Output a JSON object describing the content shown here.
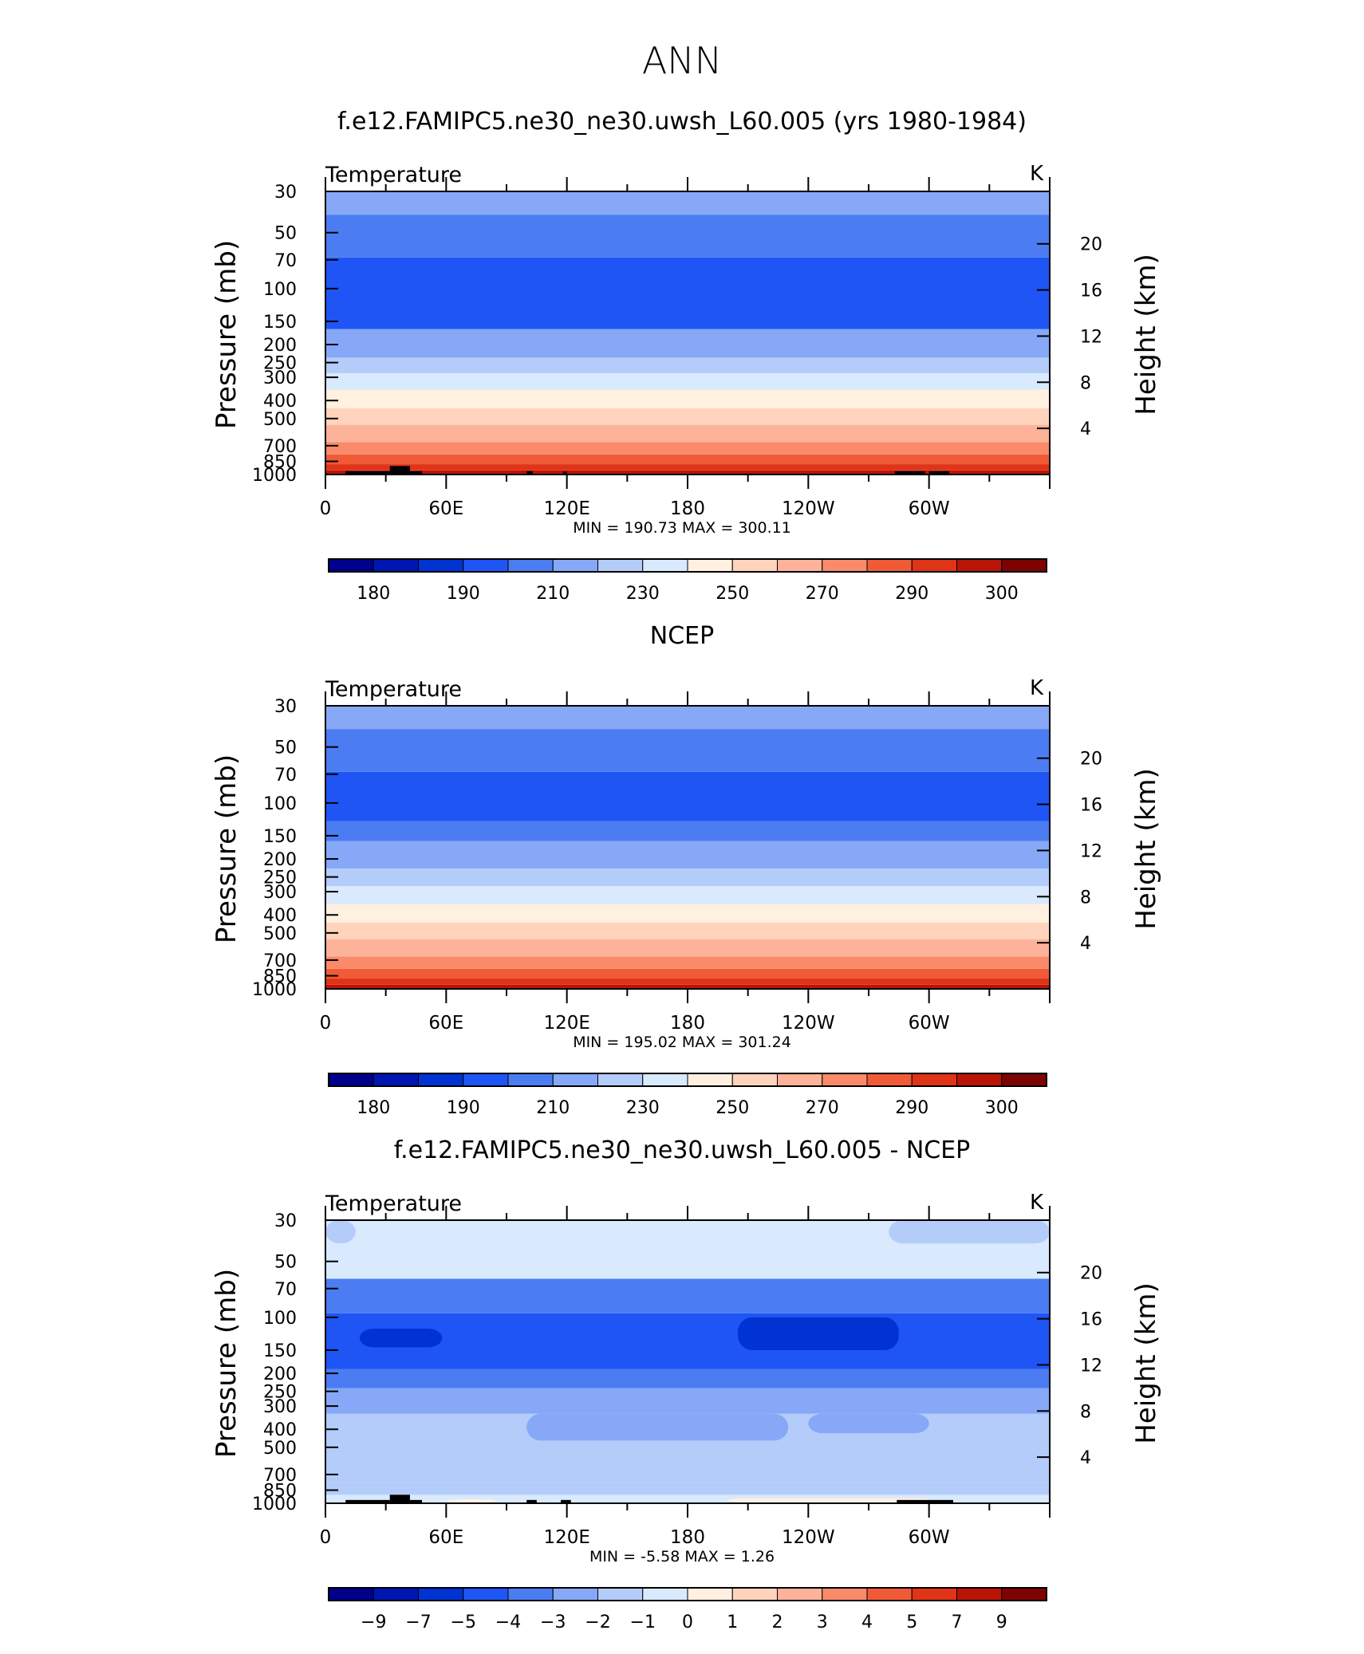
{
  "page": {
    "title": "ANN"
  },
  "colors": {
    "frame": "#000000",
    "terrain": "#000000",
    "temperature_scale": [
      "#00008a",
      "#0016b0",
      "#0033d2",
      "#1f55f5",
      "#4b7cf2",
      "#86a8f7",
      "#b4ccfa",
      "#d9e9fe",
      "#fff0e0",
      "#ffd3bc",
      "#fdb39a",
      "#f98a6a",
      "#f05a37",
      "#df3418",
      "#b81508",
      "#7d0303"
    ],
    "difference_scale": [
      "#00008a",
      "#0016b0",
      "#0033d2",
      "#1f55f5",
      "#4b7cf2",
      "#86a8f7",
      "#b4ccfa",
      "#d9e9fe",
      "#fff0e0",
      "#ffd3bc",
      "#fdb39a",
      "#f98a6a",
      "#f05a37",
      "#df3418",
      "#b81508",
      "#7d0303"
    ]
  },
  "chart_data": [
    {
      "type": "heatmap",
      "title": "f.e12.FAMIPC5.ne30_ne30.uwsh_L60.005 (yrs 1980-1984)",
      "variable_label": "Temperature",
      "units": "K",
      "ylabel": "Pressure  (mb)",
      "ylabel_right": "Height  (km)",
      "x_tick_labels": [
        "0",
        "60E",
        "120E",
        "180",
        "120W",
        "60W"
      ],
      "y_tick_labels": [
        "30",
        "50",
        "70",
        "100",
        "150",
        "200",
        "250",
        "300",
        "400",
        "500",
        "700",
        "850",
        "1000"
      ],
      "y_right_tick_labels": [
        "20",
        "16",
        "12",
        "8",
        "4"
      ],
      "xlim": [
        0,
        360
      ],
      "ylim_mb": [
        1000,
        30
      ],
      "y_scale": "log",
      "stats_text": "MIN =  190.73   MAX =  300.11",
      "min": 190.73,
      "max": 300.11,
      "colorbar_labels": [
        "180",
        "190",
        "210",
        "230",
        "250",
        "270",
        "290",
        "300"
      ],
      "colorbar_levels": [
        180,
        185,
        190,
        200,
        210,
        220,
        230,
        240,
        250,
        260,
        270,
        280,
        290,
        295,
        300
      ],
      "layers": [
        {
          "from_mb": 1000,
          "to_mb": 950,
          "color_index": 14
        },
        {
          "from_mb": 950,
          "to_mb": 880,
          "color_index": 13
        },
        {
          "from_mb": 880,
          "to_mb": 780,
          "color_index": 12
        },
        {
          "from_mb": 780,
          "to_mb": 670,
          "color_index": 11
        },
        {
          "from_mb": 670,
          "to_mb": 540,
          "color_index": 10
        },
        {
          "from_mb": 540,
          "to_mb": 440,
          "color_index": 9
        },
        {
          "from_mb": 440,
          "to_mb": 350,
          "color_index": 8
        },
        {
          "from_mb": 350,
          "to_mb": 285,
          "color_index": 7
        },
        {
          "from_mb": 285,
          "to_mb": 235,
          "color_index": 6
        },
        {
          "from_mb": 235,
          "to_mb": 165,
          "color_index": 5
        },
        {
          "from_mb": 165,
          "to_mb": 68,
          "color_index": 3
        },
        {
          "from_mb": 68,
          "to_mb": 40,
          "color_index": 4
        },
        {
          "from_mb": 40,
          "to_mb": 30,
          "color_index": 5
        }
      ],
      "terrain": [
        {
          "lon": [
            10,
            32
          ],
          "top_mb": 960
        },
        {
          "lon": [
            32,
            42
          ],
          "top_mb": 900
        },
        {
          "lon": [
            42,
            48
          ],
          "top_mb": 960
        },
        {
          "lon": [
            100,
            103
          ],
          "top_mb": 960
        },
        {
          "lon": [
            118,
            120
          ],
          "top_mb": 965
        },
        {
          "lon": [
            283,
            298
          ],
          "top_mb": 960
        },
        {
          "lon": [
            300,
            310
          ],
          "top_mb": 960
        }
      ]
    },
    {
      "type": "heatmap",
      "title": "NCEP",
      "variable_label": "Temperature",
      "units": "K",
      "ylabel": "Pressure  (mb)",
      "ylabel_right": "Height  (km)",
      "x_tick_labels": [
        "0",
        "60E",
        "120E",
        "180",
        "120W",
        "60W"
      ],
      "y_tick_labels": [
        "30",
        "50",
        "70",
        "100",
        "150",
        "200",
        "250",
        "300",
        "400",
        "500",
        "700",
        "850",
        "1000"
      ],
      "y_right_tick_labels": [
        "20",
        "16",
        "12",
        "8",
        "4"
      ],
      "xlim": [
        0,
        360
      ],
      "ylim_mb": [
        1000,
        30
      ],
      "y_scale": "log",
      "stats_text": "MIN =  195.02   MAX =  301.24",
      "min": 195.02,
      "max": 301.24,
      "colorbar_labels": [
        "180",
        "190",
        "210",
        "230",
        "250",
        "270",
        "290",
        "300"
      ],
      "colorbar_levels": [
        180,
        185,
        190,
        200,
        210,
        220,
        230,
        240,
        250,
        260,
        270,
        280,
        290,
        295,
        300
      ],
      "layers": [
        {
          "from_mb": 1000,
          "to_mb": 950,
          "color_index": 14
        },
        {
          "from_mb": 950,
          "to_mb": 880,
          "color_index": 13
        },
        {
          "from_mb": 880,
          "to_mb": 780,
          "color_index": 12
        },
        {
          "from_mb": 780,
          "to_mb": 670,
          "color_index": 11
        },
        {
          "from_mb": 670,
          "to_mb": 540,
          "color_index": 10
        },
        {
          "from_mb": 540,
          "to_mb": 440,
          "color_index": 9
        },
        {
          "from_mb": 440,
          "to_mb": 350,
          "color_index": 8
        },
        {
          "from_mb": 350,
          "to_mb": 280,
          "color_index": 7
        },
        {
          "from_mb": 280,
          "to_mb": 225,
          "color_index": 6
        },
        {
          "from_mb": 225,
          "to_mb": 160,
          "color_index": 5
        },
        {
          "from_mb": 160,
          "to_mb": 125,
          "color_index": 4
        },
        {
          "from_mb": 125,
          "to_mb": 68,
          "color_index": 3
        },
        {
          "from_mb": 68,
          "to_mb": 40,
          "color_index": 4
        },
        {
          "from_mb": 40,
          "to_mb": 30,
          "color_index": 5
        }
      ],
      "terrain": []
    },
    {
      "type": "heatmap",
      "title": "f.e12.FAMIPC5.ne30_ne30.uwsh_L60.005 - NCEP",
      "variable_label": "Temperature",
      "units": "K",
      "ylabel": "Pressure  (mb)",
      "ylabel_right": "Height  (km)",
      "x_tick_labels": [
        "0",
        "60E",
        "120E",
        "180",
        "120W",
        "60W"
      ],
      "y_tick_labels": [
        "30",
        "50",
        "70",
        "100",
        "150",
        "200",
        "250",
        "300",
        "400",
        "500",
        "700",
        "850",
        "1000"
      ],
      "y_right_tick_labels": [
        "20",
        "16",
        "12",
        "8",
        "4"
      ],
      "xlim": [
        0,
        360
      ],
      "ylim_mb": [
        1000,
        30
      ],
      "y_scale": "log",
      "stats_text": "MIN =    -5.58   MAX =     1.26",
      "min": -5.58,
      "max": 1.26,
      "colorbar_labels": [
        "-9",
        "-7",
        "-5",
        "-4",
        "-3",
        "-2",
        "-1",
        "0",
        "1",
        "2",
        "3",
        "4",
        "5",
        "7",
        "9"
      ],
      "colorbar_levels": [
        -9,
        -7,
        -5,
        -4,
        -3,
        -2,
        -1,
        0,
        1,
        2,
        3,
        4,
        5,
        7,
        9
      ],
      "layers": [
        {
          "from_mb": 1000,
          "to_mb": 900,
          "color_index": 7
        },
        {
          "from_mb": 900,
          "to_mb": 780,
          "color_index": 6
        },
        {
          "from_mb": 780,
          "to_mb": 330,
          "color_index": 6
        },
        {
          "from_mb": 330,
          "to_mb": 240,
          "color_index": 5
        },
        {
          "from_mb": 240,
          "to_mb": 190,
          "color_index": 4
        },
        {
          "from_mb": 190,
          "to_mb": 95,
          "color_index": 3
        },
        {
          "from_mb": 95,
          "to_mb": 62,
          "color_index": 4
        },
        {
          "from_mb": 62,
          "to_mb": 30,
          "color_index": 7
        }
      ],
      "patches": [
        {
          "lon": [
            240,
            300
          ],
          "from_mb": 330,
          "to_mb": 420,
          "color_index": 5
        },
        {
          "lon": [
            100,
            230
          ],
          "from_mb": 330,
          "to_mb": 460,
          "color_index": 5
        },
        {
          "lon": [
            17,
            58
          ],
          "from_mb": 115,
          "to_mb": 145,
          "color_index": 2
        },
        {
          "lon": [
            205,
            285
          ],
          "from_mb": 100,
          "to_mb": 150,
          "color_index": 2
        },
        {
          "lon": [
            0,
            15
          ],
          "from_mb": 30,
          "to_mb": 40,
          "color_index": 6
        },
        {
          "lon": [
            280,
            360
          ],
          "from_mb": 30,
          "to_mb": 40,
          "color_index": 6
        },
        {
          "lon": [
            200,
            300
          ],
          "from_mb": 940,
          "to_mb": 985,
          "color_index": 8
        },
        {
          "lon": [
            60,
            85
          ],
          "from_mb": 950,
          "to_mb": 985,
          "color_index": 8
        }
      ],
      "terrain": [
        {
          "lon": [
            10,
            32
          ],
          "top_mb": 960
        },
        {
          "lon": [
            32,
            42
          ],
          "top_mb": 900
        },
        {
          "lon": [
            42,
            48
          ],
          "top_mb": 960
        },
        {
          "lon": [
            100,
            105
          ],
          "top_mb": 960
        },
        {
          "lon": [
            117,
            122
          ],
          "top_mb": 960
        },
        {
          "lon": [
            284,
            312
          ],
          "top_mb": 960
        }
      ]
    }
  ]
}
